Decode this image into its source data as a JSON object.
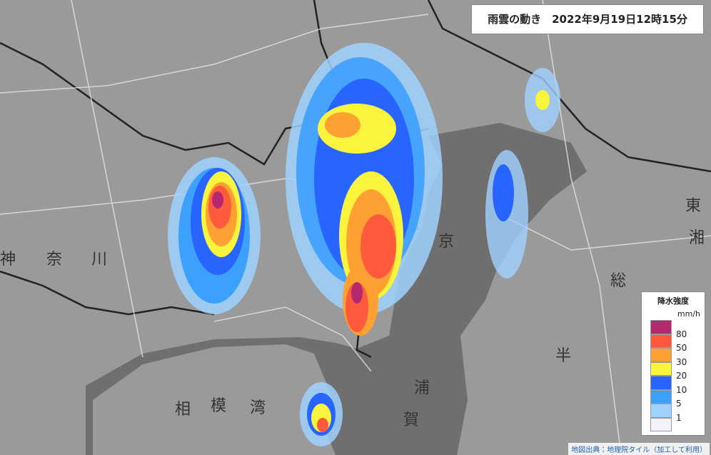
{
  "header": {
    "title": "雨雲の動き　2022年9月19日12時15分"
  },
  "legend": {
    "title": "降水強度",
    "unit": "mm/h",
    "labels": [
      "80",
      "50",
      "30",
      "20",
      "10",
      "5",
      "1"
    ],
    "colors": [
      "#b4286e",
      "#ff5a3c",
      "#ffa032",
      "#faf53c",
      "#2864ff",
      "#3ca0ff",
      "#a0d2ff",
      "#f2f2fa"
    ]
  },
  "map_labels": {
    "sagami_bay": [
      "相",
      "模",
      "湾"
    ],
    "uraga": [
      "浦",
      "賀"
    ],
    "kyo": "京",
    "so": "総",
    "han": "半",
    "kana": [
      "神",
      "奈",
      "川"
    ],
    "to": "東",
    "shonan": "湘"
  },
  "attribution": "地図出典：地理院タイル（加工して利用）"
}
